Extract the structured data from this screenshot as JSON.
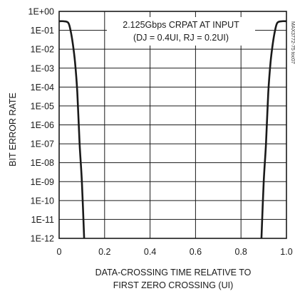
{
  "chart_data": {
    "type": "line",
    "title": "",
    "xlabel": [
      "DATA-CROSSING TIME RELATIVE TO",
      "FIRST ZERO CROSSING (UI)"
    ],
    "ylabel": "BIT ERROR RATE",
    "xlim": [
      0,
      1.0
    ],
    "ylim": [
      1e-12,
      1
    ],
    "yscale": "log",
    "grid": true,
    "x_ticks": [
      "0",
      "0.2",
      "0.4",
      "0.6",
      "0.8",
      "1.0"
    ],
    "y_ticks": [
      "1E+00",
      "1E-01",
      "1E-02",
      "1E-03",
      "1E-04",
      "1E-05",
      "1E-06",
      "1E-07",
      "1E-08",
      "1E-09",
      "1E-10",
      "1E-11",
      "1E-12"
    ],
    "annotation": [
      "2.125Gbps CRPAT AT INPUT",
      "(DJ = 0.4UI, RJ = 0.2UI)"
    ],
    "side_text": "MAX3772-75 toc07",
    "series": [
      {
        "x": [
          0.0,
          0.02,
          0.04,
          0.05,
          0.06,
          0.07,
          0.08,
          0.09,
          0.1,
          0.11
        ],
        "y": [
          0.3,
          0.3,
          0.25,
          0.1,
          0.02,
          0.002,
          5e-05,
          1e-07,
          1e-09,
          1e-12
        ]
      },
      {
        "x": [
          0.89,
          0.9,
          0.91,
          0.92,
          0.93,
          0.94,
          0.95,
          0.96,
          0.98,
          1.0
        ],
        "y": [
          1e-12,
          1e-09,
          1e-07,
          5e-05,
          0.002,
          0.02,
          0.1,
          0.25,
          0.3,
          0.3
        ]
      }
    ]
  }
}
